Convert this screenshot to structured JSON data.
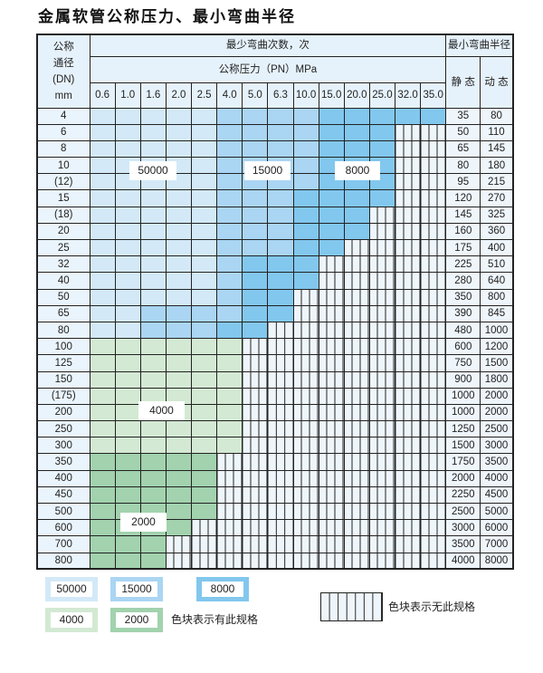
{
  "title": "金属软管公称压力、最小弯曲半径",
  "header": {
    "dn_label_lines": [
      "公称",
      "通径",
      "(DN)",
      "mm"
    ],
    "bend_count_label": "最少弯曲次数，次",
    "pressure_label": "公称压力（PN）MPa",
    "min_radius_label": "最小弯曲半径",
    "static_label": "静 态",
    "dynamic_label": "动 态",
    "pressures": [
      "0.6",
      "1.0",
      "1.6",
      "2.0",
      "2.5",
      "4.0",
      "5.0",
      "6.3",
      "10.0",
      "15.0",
      "20.0",
      "25.0",
      "32.0",
      "35.0"
    ]
  },
  "rows": [
    {
      "dn": "4",
      "cells": "AAAAABBBBCCCCC",
      "static": "35",
      "dynamic": "80"
    },
    {
      "dn": "6",
      "cells": "AAAAABBBBCCCXX",
      "static": "50",
      "dynamic": "110"
    },
    {
      "dn": "8",
      "cells": "AAAAABBBBCCCXX",
      "static": "65",
      "dynamic": "145"
    },
    {
      "dn": "10",
      "cells": "AAAAABBBBCCCXX",
      "static": "80",
      "dynamic": "180"
    },
    {
      "dn": "(12)",
      "cells": "AAAAABBBBCCCXX",
      "static": "95",
      "dynamic": "215"
    },
    {
      "dn": "15",
      "cells": "AAAAABBBCCCCXX",
      "static": "120",
      "dynamic": "270"
    },
    {
      "dn": "(18)",
      "cells": "AAAAABBBCCCXXX",
      "static": "145",
      "dynamic": "325"
    },
    {
      "dn": "20",
      "cells": "AAAAABBBCCCXXX",
      "static": "160",
      "dynamic": "360"
    },
    {
      "dn": "25",
      "cells": "AAAAABBBCCXXXX",
      "static": "175",
      "dynamic": "400"
    },
    {
      "dn": "32",
      "cells": "AAAAABCCCXXXXX",
      "static": "225",
      "dynamic": "510"
    },
    {
      "dn": "40",
      "cells": "AAAAABCCCXXXXX",
      "static": "280",
      "dynamic": "640"
    },
    {
      "dn": "50",
      "cells": "AAAAABCCXXXXXX",
      "static": "350",
      "dynamic": "800"
    },
    {
      "dn": "65",
      "cells": "AABBBBCCXXXXXX",
      "static": "390",
      "dynamic": "845"
    },
    {
      "dn": "80",
      "cells": "AABBBCCXXXXXXX",
      "static": "480",
      "dynamic": "1000"
    },
    {
      "dn": "100",
      "cells": "DDDDDDXXXXXXXX",
      "static": "600",
      "dynamic": "1200"
    },
    {
      "dn": "125",
      "cells": "DDDDDDXXXXXXXX",
      "static": "750",
      "dynamic": "1500"
    },
    {
      "dn": "150",
      "cells": "DDDDDDXXXXXXXX",
      "static": "900",
      "dynamic": "1800"
    },
    {
      "dn": "(175)",
      "cells": "DDDDDDXXXXXXXX",
      "static": "1000",
      "dynamic": "2000"
    },
    {
      "dn": "200",
      "cells": "DDDDDDXXXXXXXX",
      "static": "1000",
      "dynamic": "2000"
    },
    {
      "dn": "250",
      "cells": "DDDDDDXXXXXXXX",
      "static": "1250",
      "dynamic": "2500"
    },
    {
      "dn": "300",
      "cells": "DDDDDDXXXXXXXX",
      "static": "1500",
      "dynamic": "3000"
    },
    {
      "dn": "350",
      "cells": "EEEEEXXXXXXXXX",
      "static": "1750",
      "dynamic": "3500"
    },
    {
      "dn": "400",
      "cells": "EEEEEXXXXXXXXX",
      "static": "2000",
      "dynamic": "4000"
    },
    {
      "dn": "450",
      "cells": "EEEEEXXXXXXXXX",
      "static": "2250",
      "dynamic": "4500"
    },
    {
      "dn": "500",
      "cells": "EEEEEXXXXXXXXX",
      "static": "2500",
      "dynamic": "5000"
    },
    {
      "dn": "600",
      "cells": "EEEEXXXXXXXXXX",
      "static": "3000",
      "dynamic": "6000"
    },
    {
      "dn": "700",
      "cells": "EEEXXXXXXXXXXX",
      "static": "3500",
      "dynamic": "7000"
    },
    {
      "dn": "800",
      "cells": "EEEXXXXXXXXXXX",
      "static": "4000",
      "dynamic": "8000"
    }
  ],
  "region_labels": {
    "a": "50000",
    "b": "15000",
    "c": "8000",
    "d": "4000",
    "e": "2000"
  },
  "colors": {
    "A": "#d3e9f8",
    "B": "#aad5f3",
    "C": "#82c7ee",
    "D": "#d3e9d3",
    "E": "#a2d2ae",
    "none": "#eef5fb"
  },
  "legend": {
    "items": [
      "50000",
      "15000",
      "8000",
      "4000",
      "2000"
    ],
    "has_spec_text": "色块表示有此规格",
    "no_spec_text": "色块表示无此规格"
  }
}
